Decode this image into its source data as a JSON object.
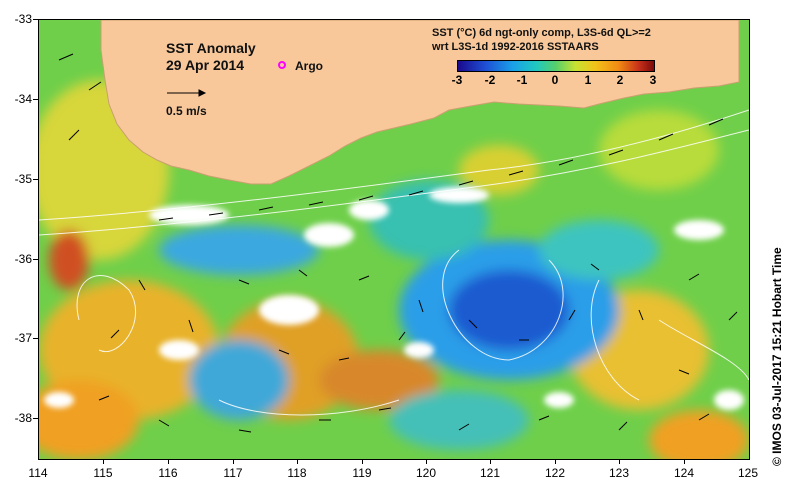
{
  "map": {
    "title": "SST Anomaly",
    "date": "29 Apr 2014",
    "scale_label": "0.5 m/s",
    "argo_label": "Argo",
    "colorbar_title_line1": "SST (°C) 6d ngt-only comp, L3S-6d QL>=2",
    "colorbar_title_line2": "wrt L3S-1d 1992-2016 SSTAARS",
    "colorbar_ticks": [
      "-3",
      "-2",
      "-1",
      "0",
      "1",
      "2",
      "3"
    ],
    "lat_ticks": [
      "-33",
      "-34",
      "-35",
      "-36",
      "-37",
      "-38"
    ],
    "lon_ticks": [
      "114",
      "115",
      "116",
      "117",
      "118",
      "119",
      "120",
      "121",
      "122",
      "123",
      "124",
      "125"
    ],
    "footer": "© IMOS 03-Jul-2017 15:21 Hobart Time",
    "colors": {
      "land": "#f8c89a",
      "argo": "#ff00ff",
      "ocean_base": "#6fcf4a"
    }
  }
}
